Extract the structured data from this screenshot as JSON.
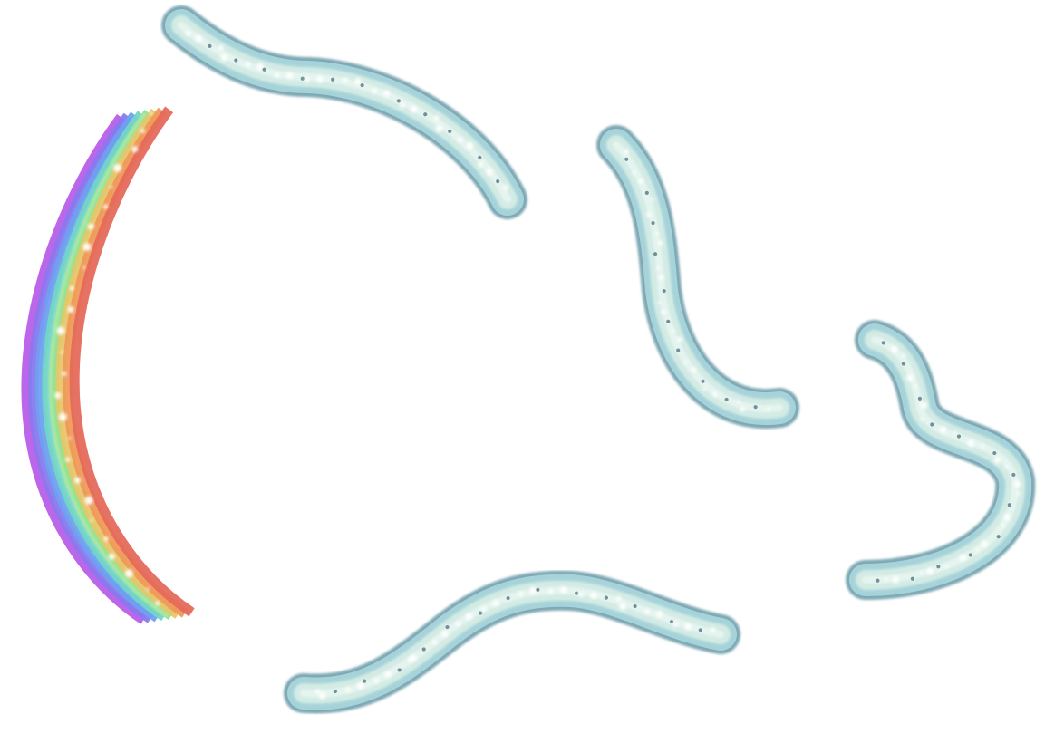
{
  "scene": {
    "background": "#ffffff",
    "rainbow": {
      "colors": [
        "#b85ee8",
        "#8a78ee",
        "#6fa0f0",
        "#72d6c6",
        "#8fe08a",
        "#e6c66a",
        "#ef9a5a",
        "#e46a5a"
      ]
    },
    "tube": {
      "edge": "#7ea8b4",
      "mid": "#a6d3d9",
      "core": "#d8eee6",
      "highlight": "#f2fbf6",
      "sparkle": "#ffffff",
      "bead": "#5f7f8c"
    }
  }
}
